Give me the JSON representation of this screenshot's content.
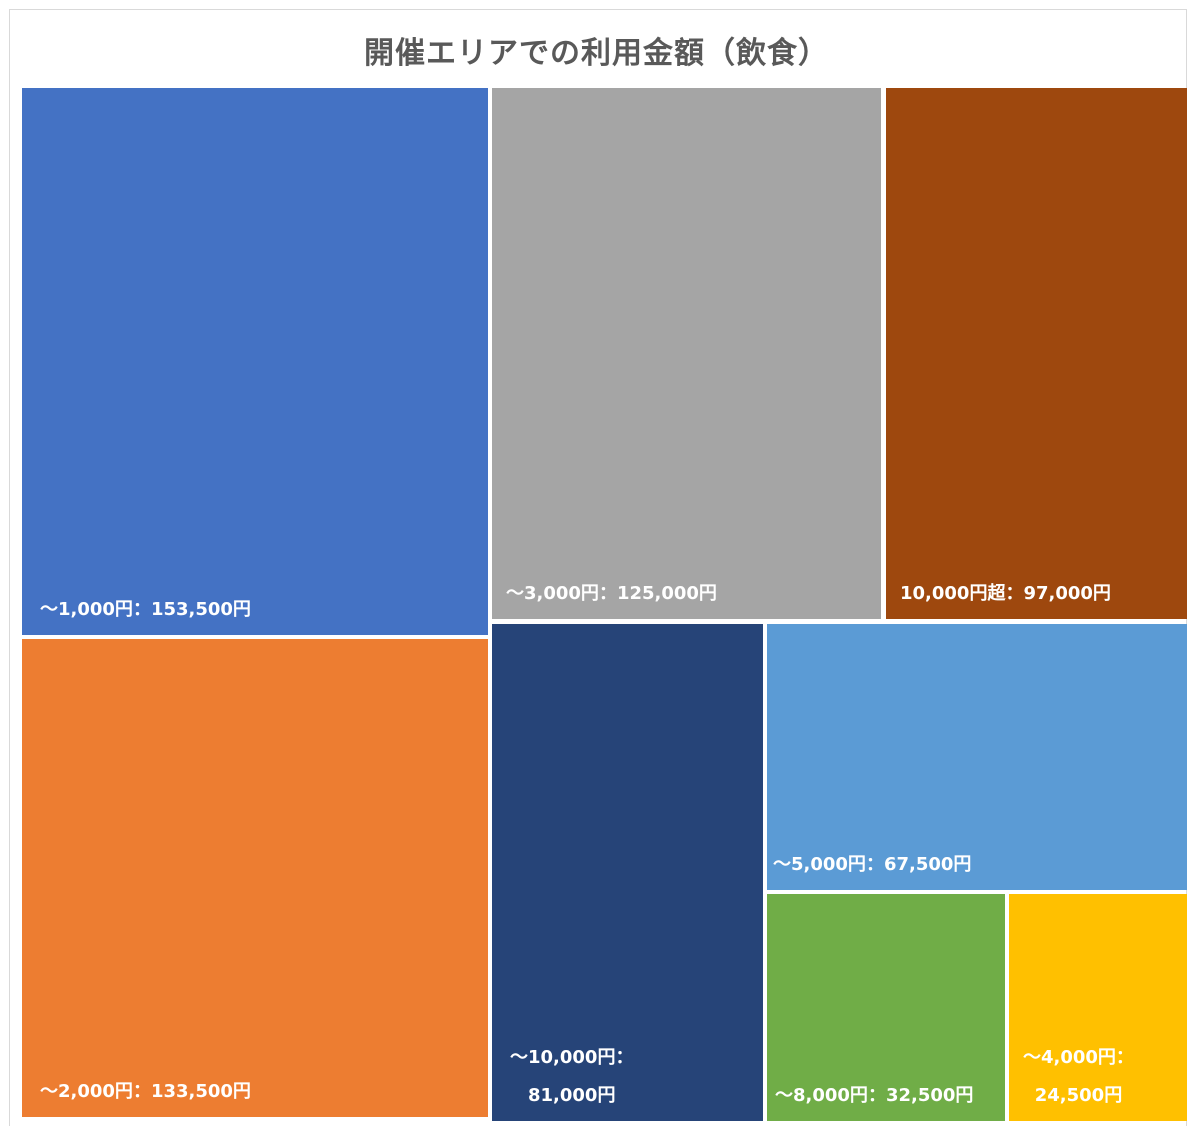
{
  "chart_data": {
    "type": "treemap",
    "title": "開催エリアでの利用金額（飲食）",
    "separator": "：",
    "unit": "円",
    "items": [
      {
        "category": "～1,000円",
        "value": 153500,
        "value_label": "153,500円",
        "color": "#4472c4"
      },
      {
        "category": "～2,000円",
        "value": 133500,
        "value_label": "133,500円",
        "color": "#ed7d31"
      },
      {
        "category": "～3,000円",
        "value": 125000,
        "value_label": "125,000円",
        "color": "#a5a5a5"
      },
      {
        "category": "10,000円超",
        "value": 97000,
        "value_label": "97,000円",
        "color": "#9e480e"
      },
      {
        "category": "～10,000円",
        "value": 81000,
        "value_label": "81,000円",
        "color": "#264478"
      },
      {
        "category": "～5,000円",
        "value": 67500,
        "value_label": "67,500円",
        "color": "#5b9bd5"
      },
      {
        "category": "～8,000円",
        "value": 32500,
        "value_label": "32,500円",
        "color": "#70ad47"
      },
      {
        "category": "～4,000円",
        "value": 24500,
        "value_label": "24,500円",
        "color": "#ffc000"
      }
    ]
  }
}
